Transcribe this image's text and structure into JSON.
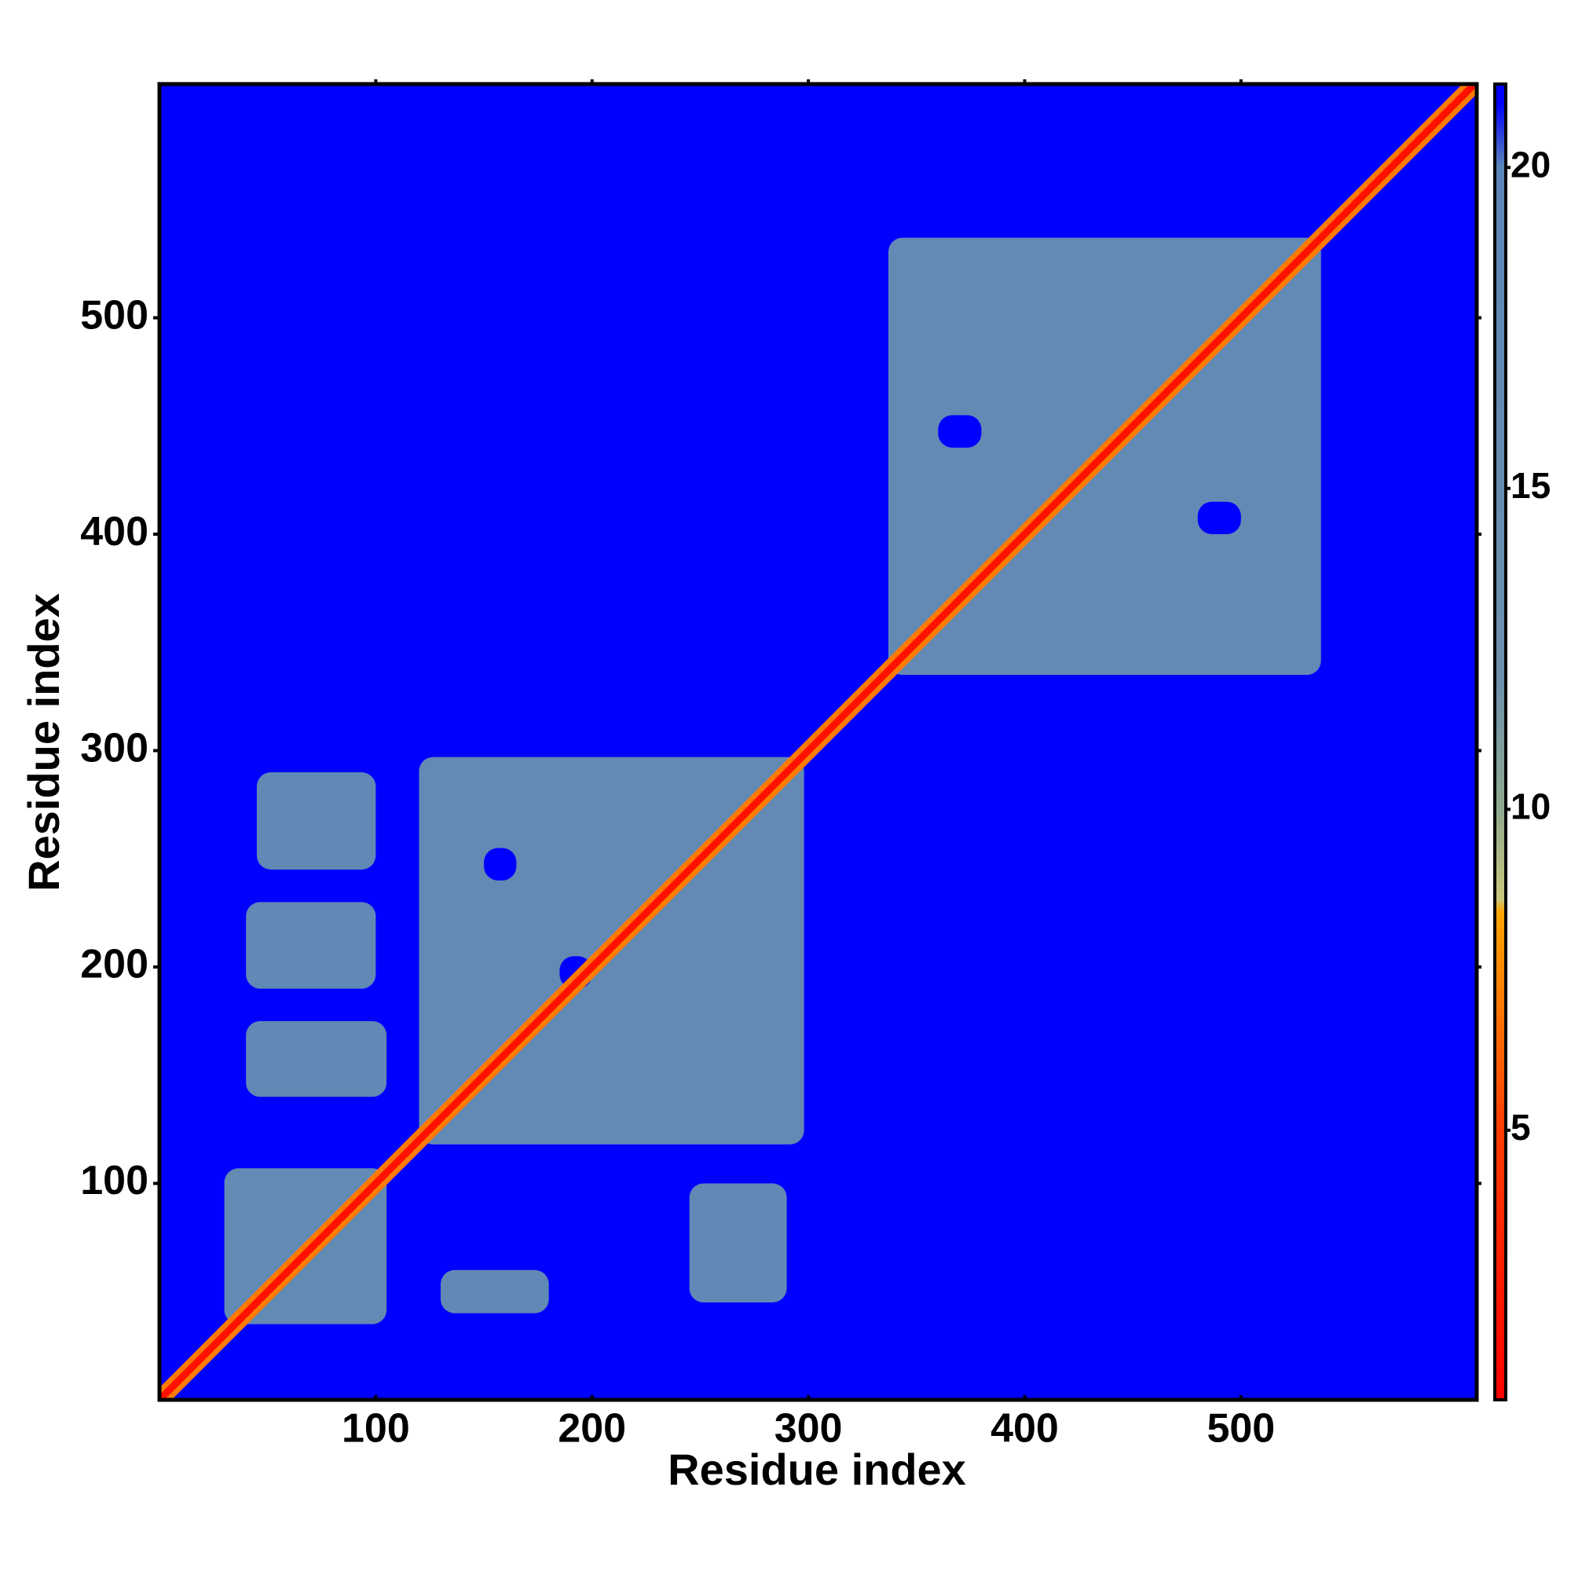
{
  "chart_data": {
    "type": "heatmap",
    "xlabel": "Residue index",
    "ylabel": "Residue index",
    "xlim": [
      0,
      609
    ],
    "ylim": [
      0,
      608
    ],
    "xticks": [
      100,
      200,
      300,
      400,
      500
    ],
    "yticks": [
      100,
      200,
      300,
      400,
      500
    ],
    "zlim": [
      0.8,
      21.3
    ],
    "zticks": [
      5,
      10,
      15,
      20
    ],
    "colorscale": [
      [
        0.8,
        "#ff0000"
      ],
      [
        5,
        "#ff3c00"
      ],
      [
        8.4,
        "#ffa500"
      ],
      [
        8.6,
        "#c9c77c"
      ],
      [
        10,
        "#8fa98e"
      ],
      [
        12,
        "#6d90ac"
      ],
      [
        20,
        "#5b86b8"
      ],
      [
        21,
        "#0000ff"
      ]
    ],
    "background": 21.3,
    "diagonal": {
      "start": 0,
      "end": 609,
      "value": 2
    },
    "blocks": [
      [
        30,
        105,
        35,
        107,
        17
      ],
      [
        120,
        298,
        118,
        297,
        17
      ],
      [
        337,
        537,
        335,
        537,
        17
      ],
      [
        45,
        100,
        245,
        290,
        18
      ],
      [
        40,
        105,
        140,
        175,
        18
      ],
      [
        40,
        100,
        190,
        230,
        18
      ],
      [
        245,
        290,
        45,
        100,
        18
      ],
      [
        130,
        180,
        40,
        60,
        18
      ],
      [
        185,
        200,
        190,
        205,
        21
      ],
      [
        150,
        165,
        240,
        255,
        21
      ],
      [
        360,
        380,
        440,
        455,
        21
      ],
      [
        480,
        500,
        400,
        415,
        21
      ]
    ]
  }
}
